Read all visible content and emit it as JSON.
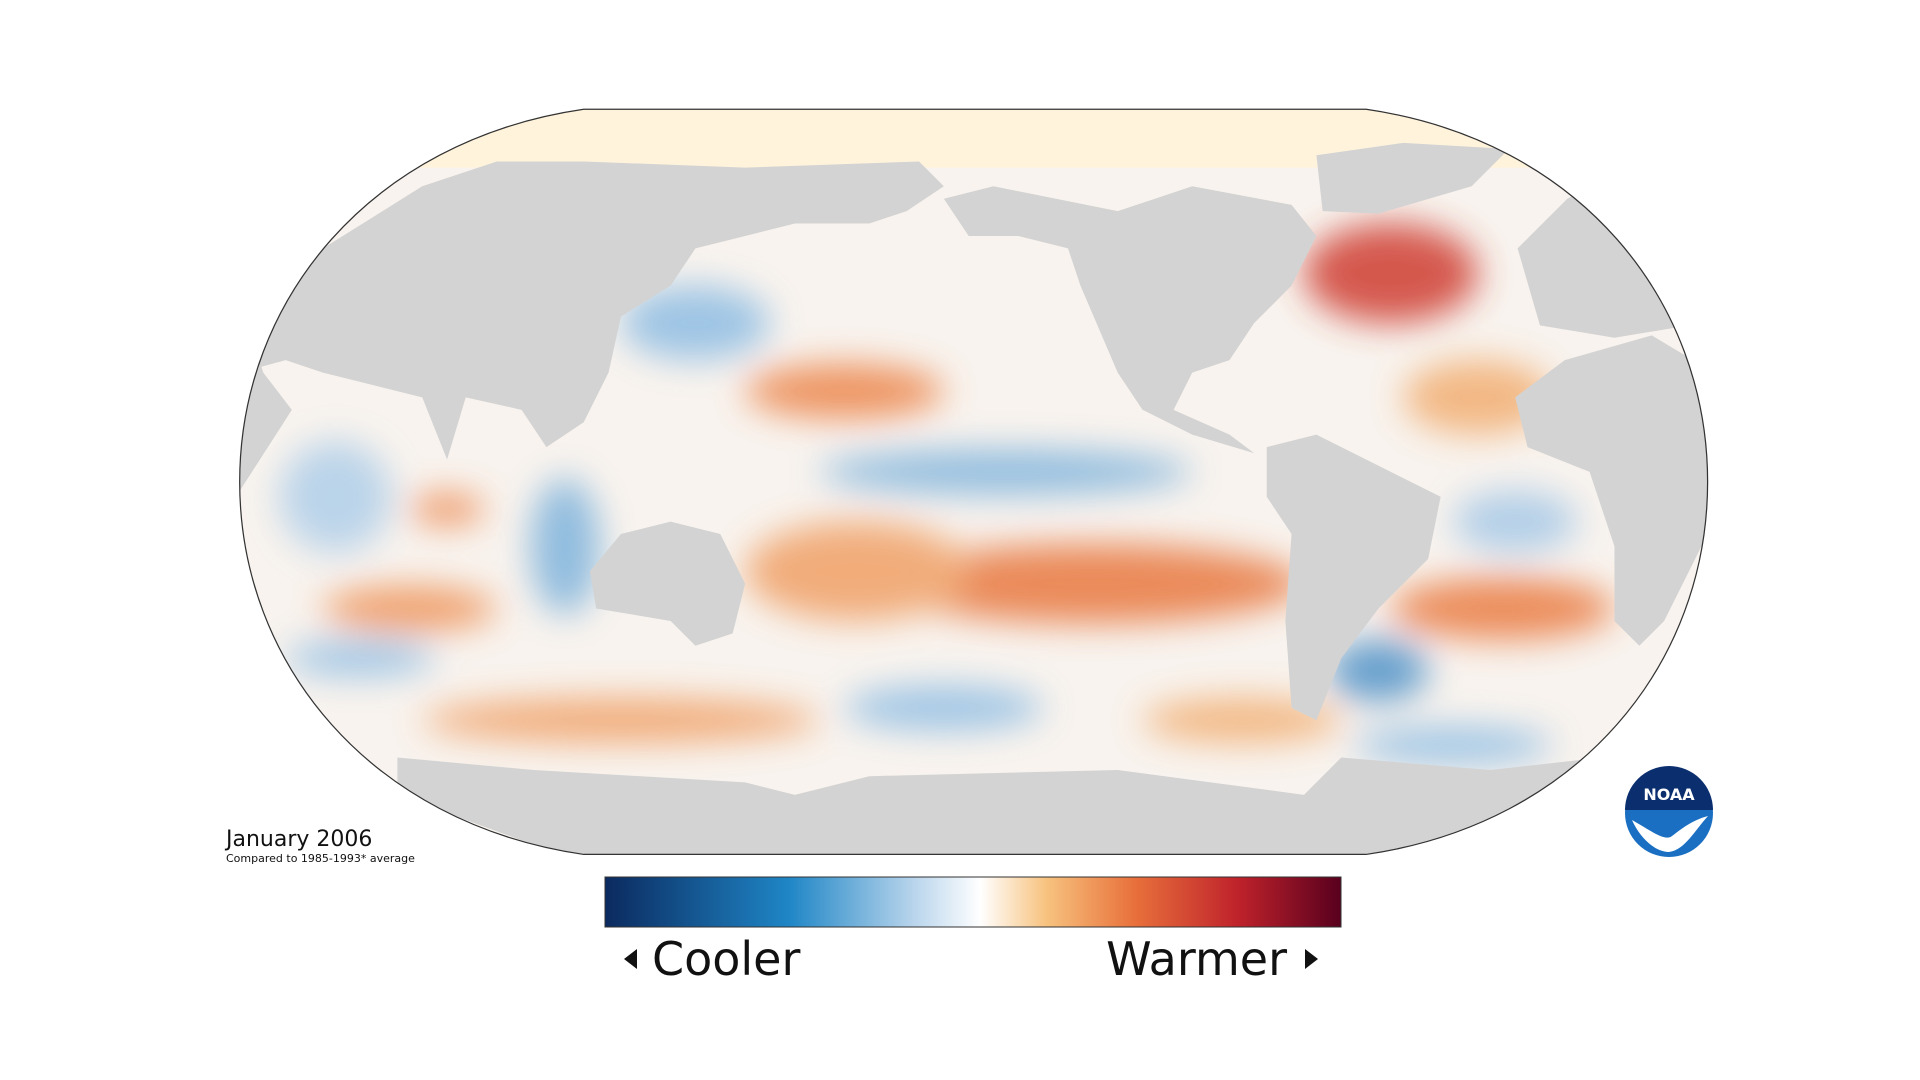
{
  "label": {
    "title": "January 2006",
    "subtitle": "Compared to 1985-1993* average"
  },
  "legend": {
    "low": "Cooler",
    "high": "Warmer"
  },
  "logo": {
    "text": "NOAA"
  }
}
